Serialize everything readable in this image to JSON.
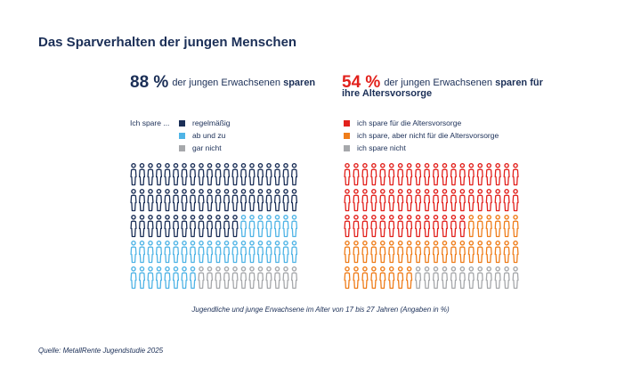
{
  "title": "Das Sparverhalten der jungen Menschen",
  "colors": {
    "navy": "#1b2f57",
    "light_blue": "#4fb4e6",
    "gray": "#a6a8ab",
    "red": "#e2211c",
    "orange": "#ef7d1a"
  },
  "left": {
    "big": "88 %",
    "text": "der jungen Erwachsenen",
    "bold": "sparen",
    "legend_head": "Ich spare ...",
    "legend": [
      {
        "label": "regelmäßig",
        "color": "#1b2f57"
      },
      {
        "label": "ab und zu",
        "color": "#4fb4e6"
      },
      {
        "label": "gar nicht",
        "color": "#a6a8ab"
      }
    ]
  },
  "right": {
    "big": "54 %",
    "text": "der jungen Erwachsenen",
    "bold": "sparen für ihre Altersvorsorge",
    "legend": [
      {
        "label": "ich spare für die Altersvorsorge",
        "color": "#e2211c"
      },
      {
        "label": "ich spare, aber nicht für die Altersvorsorge",
        "color": "#ef7d1a"
      },
      {
        "label": "ich spare nicht",
        "color": "#a6a8ab"
      }
    ]
  },
  "caption": "Jugendliche und junge Erwachsene im Alter von 17 bis 27 Jahren (Angaben in %)",
  "source": "Quelle: MetallRente Jugendstudie 2025",
  "chart_data": [
    {
      "type": "pictogram",
      "total": 100,
      "series": [
        {
          "name": "regelmäßig",
          "value": 53
        },
        {
          "name": "ab und zu",
          "value": 35
        },
        {
          "name": "gar nicht",
          "value": 12
        }
      ]
    },
    {
      "type": "pictogram",
      "total": 100,
      "series": [
        {
          "name": "ich spare für die Altersvorsorge",
          "value": 54
        },
        {
          "name": "ich spare, aber nicht für die Altersvorsorge",
          "value": 34
        },
        {
          "name": "ich spare nicht",
          "value": 12
        }
      ]
    }
  ]
}
